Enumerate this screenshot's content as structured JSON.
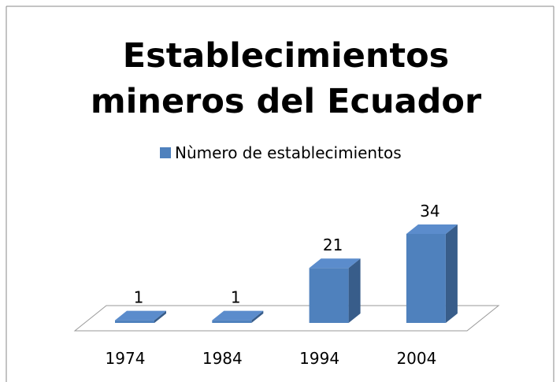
{
  "chart_data": {
    "type": "bar3d",
    "title": "Establecimientos mineros del Ecuador",
    "categories": [
      "1974",
      "1984",
      "1994",
      "2004"
    ],
    "series": [
      {
        "name": "Nùmero de establecimientos",
        "color": "#4f81bd",
        "values": [
          1,
          1,
          21,
          34
        ]
      }
    ],
    "data_labels": true,
    "legend": "top"
  }
}
